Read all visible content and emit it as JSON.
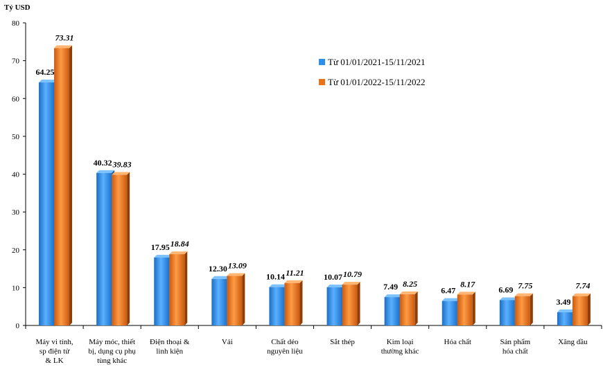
{
  "chart_data": {
    "type": "bar",
    "ylabel": "Tỷ USD",
    "ylim": [
      0,
      80
    ],
    "yticks": [
      0,
      10,
      20,
      30,
      40,
      50,
      60,
      70,
      80
    ],
    "categories": [
      [
        "Máy vi tính,",
        "sp điện tử",
        "& LK"
      ],
      [
        "Máy móc, thiết",
        "bị, dụng cụ phụ",
        "tùng khác"
      ],
      [
        "Điện thoại &",
        "linh kiện"
      ],
      [
        "Vải"
      ],
      [
        "Chất dẻo",
        "nguyên liệu"
      ],
      [
        "Sắt thép"
      ],
      [
        "Kim loại",
        "thường khác"
      ],
      [
        "Hóa chất"
      ],
      [
        "Sản phẩm",
        "hóa chất"
      ],
      [
        "Xăng dầu"
      ]
    ],
    "series": [
      {
        "name": "Từ 01/01/2021-15/11/2021",
        "color": "#2E8FE8",
        "values": [
          64.25,
          40.32,
          17.95,
          12.3,
          10.14,
          10.07,
          7.49,
          6.47,
          6.69,
          3.49
        ],
        "labels": [
          "64.25",
          "40.32",
          "17.95",
          "12.30",
          "10.14",
          "10.07",
          "7.49",
          "6.47",
          "6.69",
          "3.49"
        ]
      },
      {
        "name": "Từ 01/01/2022-15/11/2022",
        "color": "#E8731A",
        "values": [
          73.31,
          39.83,
          18.84,
          13.09,
          11.21,
          10.79,
          8.25,
          8.17,
          7.75,
          7.74
        ],
        "labels": [
          "73.31",
          "39.83",
          "18.84",
          "13.09",
          "11.21",
          "10.79",
          "8.25",
          "8.17",
          "7.75",
          "7.74"
        ]
      }
    ],
    "legend": "upper-right",
    "grid": false
  }
}
